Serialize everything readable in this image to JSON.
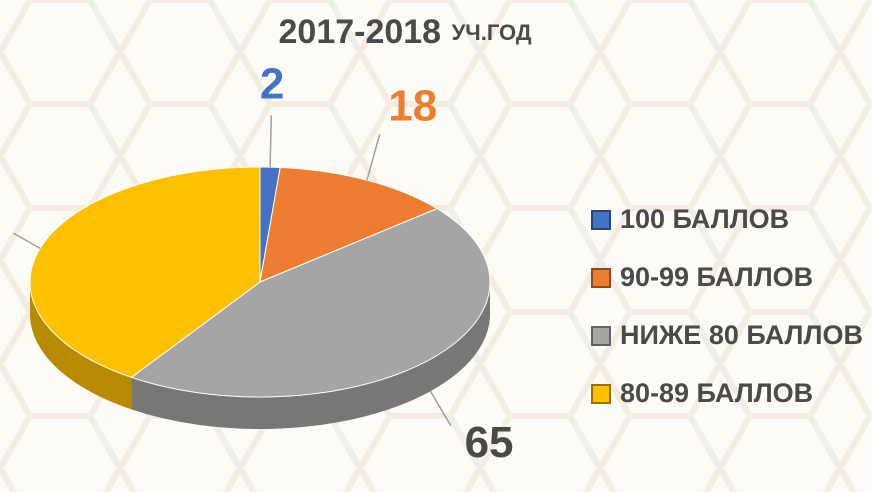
{
  "chart_data": {
    "type": "pie",
    "title": "2017-2018",
    "subtitle": "УЧ.ГОД",
    "categories": [
      "100 БАЛЛОВ",
      "90-99 БАЛЛОВ",
      "НИЖЕ 80 БАЛЛОВ",
      "80-89 БАЛЛОВ"
    ],
    "values": [
      2,
      18,
      65,
      58
    ],
    "colors": [
      "#4472c4",
      "#ed7d31",
      "#a5a5a5",
      "#ffc000"
    ],
    "legend": "right"
  }
}
